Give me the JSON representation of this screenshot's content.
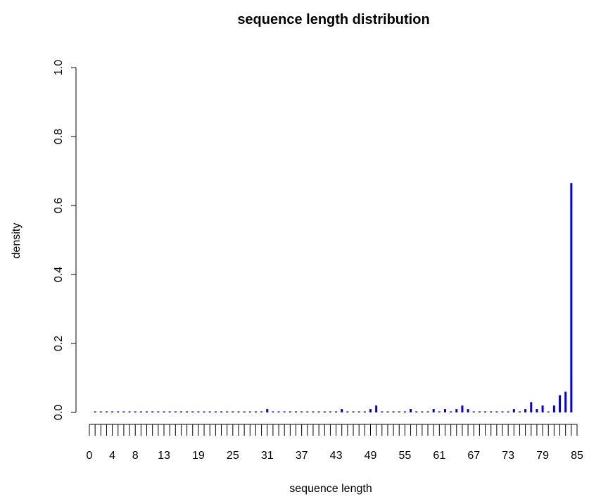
{
  "chart_data": {
    "type": "bar",
    "title": "sequence length distribution",
    "xlabel": "sequence length",
    "ylabel": "density",
    "xlim": [
      0,
      85
    ],
    "ylim": [
      0,
      1.0
    ],
    "bar_color": "#0000ee",
    "y_ticks": [
      0.0,
      0.2,
      0.4,
      0.6,
      0.8,
      1.0
    ],
    "y_tick_labels": [
      "0.0",
      "0.2",
      "0.4",
      "0.6",
      "0.8",
      "1.0"
    ],
    "x_ticks": [
      0,
      4,
      8,
      13,
      19,
      25,
      31,
      37,
      43,
      49,
      55,
      61,
      67,
      73,
      79,
      85
    ],
    "x_tick_labels": [
      "0",
      "4",
      "8",
      "13",
      "19",
      "25",
      "31",
      "37",
      "43",
      "49",
      "55",
      "61",
      "67",
      "73",
      "79",
      "85"
    ],
    "x": [
      1,
      2,
      3,
      4,
      5,
      6,
      7,
      8,
      9,
      10,
      11,
      12,
      13,
      14,
      15,
      16,
      17,
      18,
      19,
      20,
      21,
      22,
      23,
      24,
      25,
      26,
      27,
      28,
      29,
      30,
      31,
      32,
      33,
      34,
      35,
      36,
      37,
      38,
      39,
      40,
      41,
      42,
      43,
      44,
      45,
      46,
      47,
      48,
      49,
      50,
      51,
      52,
      53,
      54,
      55,
      56,
      57,
      58,
      59,
      60,
      61,
      62,
      63,
      64,
      65,
      66,
      67,
      68,
      69,
      70,
      71,
      72,
      73,
      74,
      75,
      76,
      77,
      78,
      79,
      80,
      81,
      82,
      83,
      84
    ],
    "values": [
      0,
      0,
      0,
      0,
      0,
      0,
      0,
      0,
      0,
      0,
      0,
      0,
      0,
      0,
      0,
      0,
      0,
      0,
      0,
      0,
      0,
      0,
      0,
      0,
      0,
      0,
      0,
      0,
      0,
      0,
      0.01,
      0,
      0,
      0,
      0,
      0,
      0,
      0,
      0,
      0,
      0,
      0,
      0,
      0.01,
      0,
      0,
      0,
      0,
      0.01,
      0.02,
      0,
      0,
      0,
      0,
      0,
      0.01,
      0,
      0,
      0,
      0.01,
      0,
      0.01,
      0,
      0.01,
      0.02,
      0.01,
      0,
      0,
      0,
      0,
      0,
      0,
      0,
      0.01,
      0,
      0.01,
      0.03,
      0.01,
      0.02,
      0,
      0.02,
      0.05,
      0.06,
      0.665
    ],
    "grid": false,
    "legend": "none"
  }
}
